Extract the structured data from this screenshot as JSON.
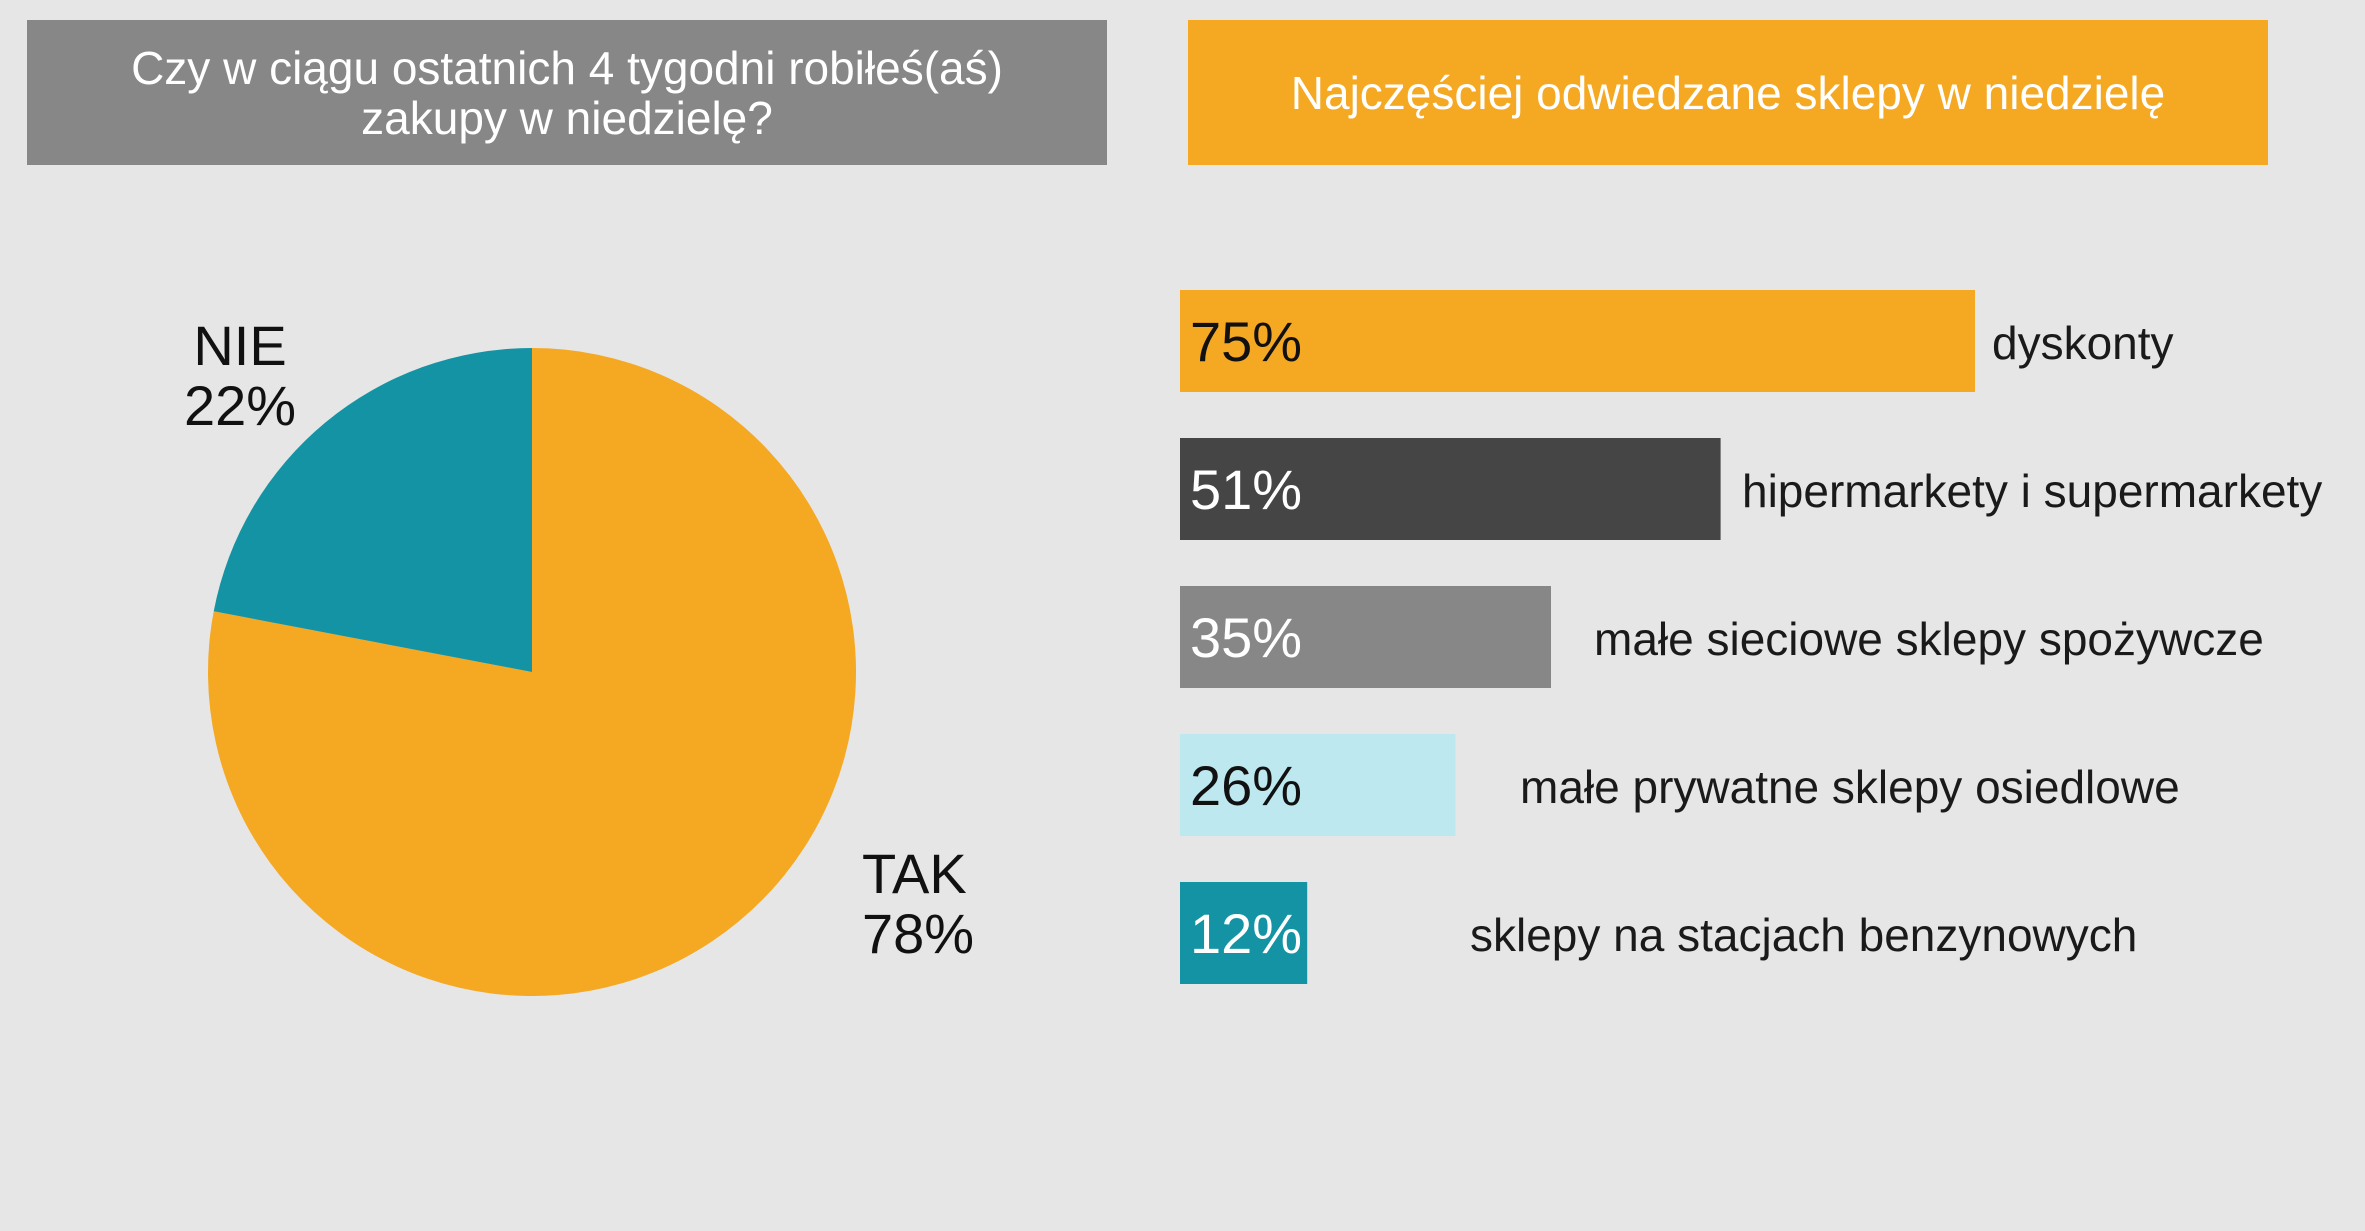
{
  "colors": {
    "background": "#e6e6e6",
    "orange": "#f5a822",
    "teal": "#1493a4",
    "dark_gray": "#454545",
    "mid_gray": "#878787",
    "light_blue": "#bde8ef"
  },
  "header_left": {
    "line1": "Czy w ciągu ostatnich 4 tygodni robiłeś(aś)",
    "line2": "zakupy w niedzielę?"
  },
  "header_right": {
    "title": "Najczęściej odwiedzane sklepy w niedzielę"
  },
  "chart_data": [
    {
      "type": "pie",
      "title": "Czy w ciągu ostatnich 4 tygodni robiłeś(aś) zakupy w niedzielę?",
      "slices": [
        {
          "label": "TAK",
          "value": 78,
          "value_label": "78%",
          "color": "#f5a822"
        },
        {
          "label": "NIE",
          "value": 22,
          "value_label": "22%",
          "color": "#1493a4"
        }
      ]
    },
    {
      "type": "bar",
      "orientation": "horizontal",
      "title": "Najczęściej odwiedzane sklepy w niedzielę",
      "xlim": [
        0,
        100
      ],
      "categories": [
        "dyskonty",
        "hipermarkety i supermarkety",
        "małe sieciowe sklepy spożywcze",
        "małe prywatne sklepy osiedlowe",
        "sklepy na stacjach benzynowych"
      ],
      "values": [
        75,
        51,
        35,
        26,
        12
      ],
      "value_labels": [
        "75%",
        "51%",
        "35%",
        "26%",
        "12%"
      ],
      "bar_colors": [
        "#f5a822",
        "#454545",
        "#878787",
        "#bde8ef",
        "#1493a4"
      ],
      "value_label_colors": [
        "#111111",
        "#ffffff",
        "#ffffff",
        "#111111",
        "#ffffff"
      ]
    }
  ]
}
